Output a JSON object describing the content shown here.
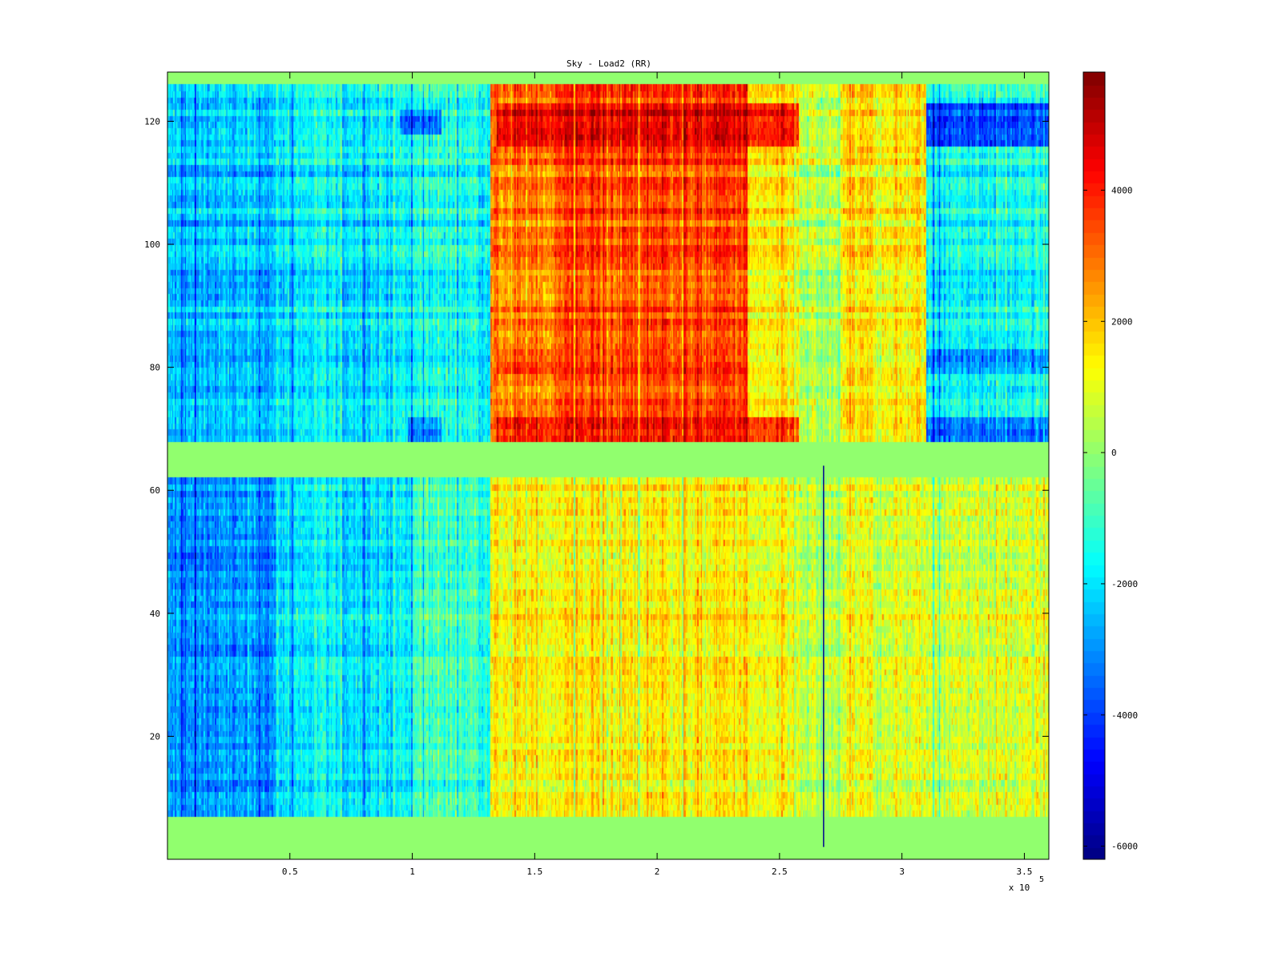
{
  "chart_data": {
    "type": "heatmap",
    "title": "Sky - Load2 (RR)",
    "xlabel": "",
    "ylabel": "",
    "x_range": [
      0,
      360000
    ],
    "y_range": [
      0,
      128
    ],
    "x_ticks": [
      50000,
      100000,
      150000,
      200000,
      250000,
      300000,
      350000
    ],
    "x_tick_labels": [
      "0.5",
      "1",
      "1.5",
      "2",
      "2.5",
      "3",
      "3.5"
    ],
    "x_exponent_label": "x 10",
    "x_exponent_power": "5",
    "y_ticks": [
      20,
      40,
      60,
      80,
      100,
      120
    ],
    "y_tick_labels": [
      "20",
      "40",
      "60",
      "80",
      "100",
      "120"
    ],
    "colormap": "jet",
    "color_range": [
      -6200,
      5800
    ],
    "colorbar_ticks": [
      4000,
      2000,
      0,
      -2000,
      -4000,
      -6000
    ],
    "colorbar_tick_labels": [
      "4000",
      "2000",
      "0",
      "-2000",
      "-4000",
      "-6000"
    ],
    "background_value": 0,
    "row_bands": [
      {
        "y_from": 7,
        "y_to": 62,
        "description": "lower band"
      },
      {
        "y_from": 68,
        "y_to": 126,
        "description": "upper band"
      }
    ],
    "time_segments": [
      {
        "x_from": 0,
        "x_to": 45000,
        "lower_mean": -3000,
        "upper_mean": -2400
      },
      {
        "x_from": 45000,
        "x_to": 100000,
        "lower_mean": -1900,
        "upper_mean": -1800
      },
      {
        "x_from": 100000,
        "x_to": 132000,
        "lower_mean": -1000,
        "upper_mean": -1400
      },
      {
        "x_from": 132000,
        "x_to": 158000,
        "lower_mean": 1300,
        "upper_mean": 2800
      },
      {
        "x_from": 158000,
        "x_to": 237000,
        "lower_mean": 1500,
        "upper_mean": 3600
      },
      {
        "x_from": 237000,
        "x_to": 258000,
        "lower_mean": 1000,
        "upper_mean": 1400
      },
      {
        "x_from": 258000,
        "x_to": 275000,
        "lower_mean": 300,
        "upper_mean": 300
      },
      {
        "x_from": 275000,
        "x_to": 310000,
        "lower_mean": 900,
        "upper_mean": 1500
      },
      {
        "x_from": 310000,
        "x_to": 360000,
        "lower_mean": 800,
        "upper_mean": -1500
      }
    ],
    "hot_rows": [
      {
        "y_from": 116,
        "y_to": 123,
        "x_from": 135000,
        "x_to": 258000,
        "value": 5200
      },
      {
        "y_from": 68,
        "y_to": 72,
        "x_from": 135000,
        "x_to": 258000,
        "value": 4800
      },
      {
        "y_from": 79,
        "y_to": 83,
        "x_from": 135000,
        "x_to": 237000,
        "value": 4300
      },
      {
        "y_from": 116,
        "y_to": 123,
        "x_from": 310000,
        "x_to": 360000,
        "value": -5200
      },
      {
        "y_from": 68,
        "y_to": 72,
        "x_from": 310000,
        "x_to": 360000,
        "value": -4200
      },
      {
        "y_from": 79,
        "y_to": 83,
        "x_from": 310000,
        "x_to": 360000,
        "value": -3200
      },
      {
        "y_from": 118,
        "y_to": 122,
        "x_from": 95000,
        "x_to": 112000,
        "value": -4500
      },
      {
        "y_from": 68,
        "y_to": 72,
        "x_from": 98000,
        "x_to": 112000,
        "value": -4000
      }
    ],
    "vertical_line": {
      "x": 268000,
      "y_from": 2,
      "y_to": 64,
      "color": "#00008f"
    }
  }
}
